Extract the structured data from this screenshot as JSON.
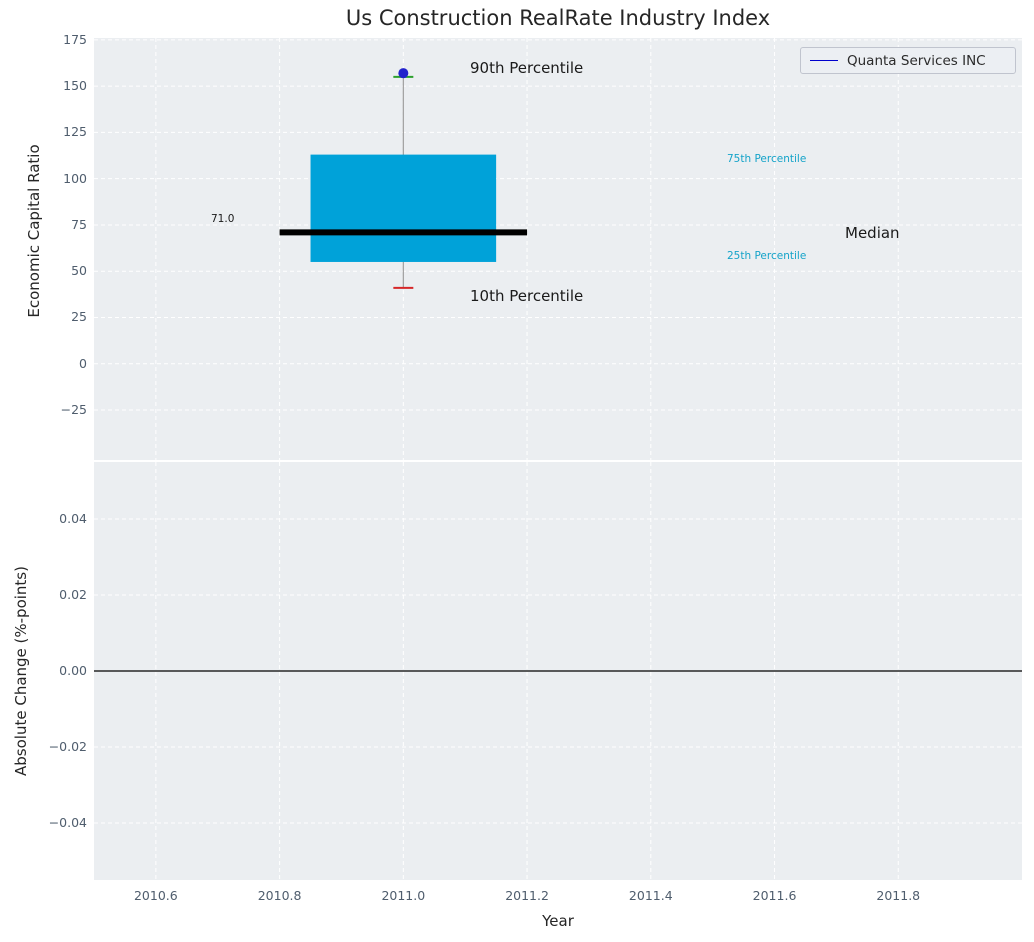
{
  "figure": {
    "title": "Us Construction RealRate Industry Index",
    "legend": {
      "label": "Quanta Services INC",
      "position": "upper right"
    }
  },
  "chart_data": [
    {
      "type": "boxplot",
      "title": "Us Construction RealRate Industry Index",
      "ylabel": "Economic Capital Ratio",
      "ylim": [
        -52,
        176
      ],
      "yticks": [
        175,
        150,
        125,
        100,
        75,
        50,
        25,
        0,
        -25
      ],
      "ytick_labels": [
        "175",
        "150",
        "125",
        "100",
        "75",
        "50",
        "25",
        "0",
        "−25"
      ],
      "xlim": [
        2010.5,
        2012.0
      ],
      "grid_x": [
        2010.6,
        2010.8,
        2011.0,
        2011.2,
        2011.4,
        2011.6,
        2011.8
      ],
      "grid": true,
      "box": {
        "x": 2011.0,
        "p10": 41,
        "p25": 55,
        "median": 71,
        "p75": 113,
        "p90": 155,
        "company_value": 157
      },
      "labels": {
        "p90": "90th Percentile",
        "p75": "75th Percentile",
        "median_name": "Median",
        "median_value": "71.0",
        "p25": "25th Percentile",
        "p10": "10th Percentile"
      },
      "series": [
        {
          "name": "Quanta Services INC",
          "x": [
            2011.0
          ],
          "y": [
            157
          ]
        }
      ]
    },
    {
      "type": "line",
      "ylabel": "Absolute Change (%-points)",
      "xlabel": "Year",
      "ylim": [
        -0.055,
        0.055
      ],
      "yticks": [
        0.04,
        0.02,
        0,
        -0.02,
        -0.04
      ],
      "ytick_labels": [
        "0.04",
        "0.02",
        "0.00",
        "−0.02",
        "−0.04"
      ],
      "xlim": [
        2010.5,
        2012.0
      ],
      "xticks": [
        2010.6,
        2010.8,
        2011.0,
        2011.2,
        2011.4,
        2011.6,
        2011.8
      ],
      "xtick_labels": [
        "2010.6",
        "2010.8",
        "2011.0",
        "2011.2",
        "2011.4",
        "2011.6",
        "2011.8"
      ],
      "zero_line": 0,
      "series": []
    }
  ],
  "colors": {
    "plot_bg": "#ebeef1",
    "grid": "#ffffff",
    "box_fill": "#00a2d9",
    "median_line": "#000000",
    "whisker": "#9e9e9e",
    "cap_top": "#2ca02c",
    "cap_bottom": "#d62728",
    "marker": "#2222cc",
    "legend_line": "#0000cd",
    "tick_label": "#4f5d6d",
    "percentile_text": "#14a3c9",
    "zero_line": "#000000",
    "title_color": "#262626"
  }
}
